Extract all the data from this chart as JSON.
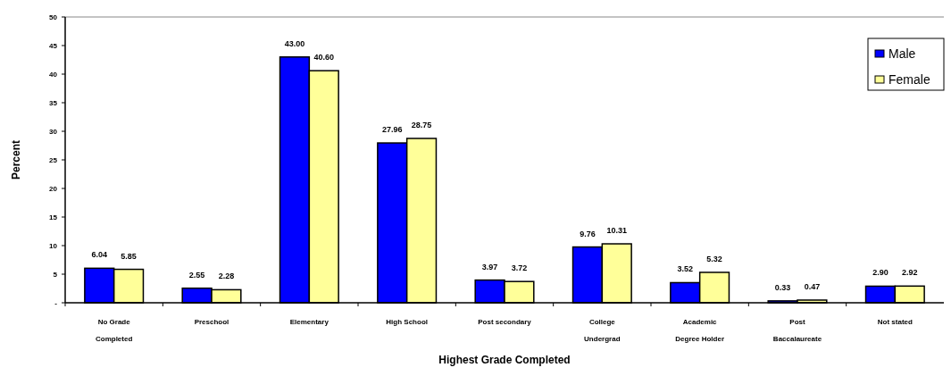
{
  "chart_data": {
    "type": "bar",
    "xlabel": "Highest Grade Completed",
    "ylabel": "Percent",
    "categories": [
      "No Grade Completed",
      "Preschool",
      "Elementary",
      "High School",
      "Post secondary",
      "College Undergrad",
      "Academic Degree Holder",
      "Post Baccalaureate",
      "Not stated"
    ],
    "series": [
      {
        "name": "Male",
        "color": "#0000ff",
        "values": [
          6.04,
          2.55,
          43.0,
          27.96,
          3.97,
          9.76,
          3.52,
          0.33,
          2.9
        ],
        "value_labels": [
          "6.04",
          "2.55",
          "43.00",
          "27.96",
          "3.97",
          "9.76",
          "3.52",
          "0.33",
          "2.90"
        ]
      },
      {
        "name": "Female",
        "color": "#ffff99",
        "values": [
          5.85,
          2.28,
          40.6,
          28.75,
          3.72,
          10.31,
          5.32,
          0.47,
          2.92
        ],
        "value_labels": [
          "5.85",
          "2.28",
          "40.60",
          "28.75",
          "3.72",
          "10.31",
          "5.32",
          "0.47",
          "2.92"
        ]
      }
    ],
    "ylim": [
      0,
      50
    ],
    "yticks": [
      {
        "value": 0,
        "label": "-"
      },
      5,
      10,
      15,
      20,
      25,
      30,
      35,
      40,
      45,
      50
    ],
    "legend": "top right",
    "grid": false
  }
}
